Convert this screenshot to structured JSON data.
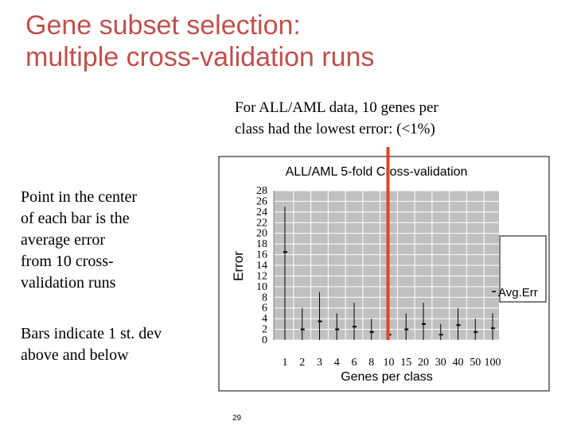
{
  "slide": {
    "title_lines": [
      "Gene subset selection:",
      "multiple cross-validation runs"
    ],
    "callout_lines": [
      "For ALL/AML data, 10 genes per",
      "class had the lowest error: (<1%)"
    ],
    "note1_lines": [
      "Point in the center",
      "of each bar is the",
      "average error",
      "from 10 cross-",
      "validation runs"
    ],
    "note2_lines": [
      "Bars indicate 1 st. dev",
      "above and below"
    ],
    "page_number": "29"
  },
  "colors": {
    "title": "#c0504d",
    "highlight_line": "#e0451f",
    "plot_background": "#c0c0c0",
    "grid": "#ffffff"
  },
  "chart_data": {
    "type": "scatter",
    "title": "ALL/AML 5-fold Cross-validation",
    "xlabel": "Genes per class",
    "ylabel": "Error",
    "categories": [
      "1",
      "2",
      "3",
      "4",
      "6",
      "8",
      "10",
      "15",
      "20",
      "30",
      "40",
      "50",
      "100"
    ],
    "series": [
      {
        "name": "Avg.Err",
        "values": [
          16.5,
          2,
          3.5,
          2,
          2.5,
          1.5,
          1,
          2,
          3,
          1,
          2.8,
          1.5,
          2.2
        ],
        "err_low": [
          0,
          0,
          0,
          0,
          0,
          0,
          0,
          0,
          0,
          0,
          0,
          0,
          0
        ],
        "err_high": [
          25,
          6,
          9,
          5,
          7,
          4,
          2,
          5,
          7,
          3,
          6,
          4,
          5
        ]
      }
    ],
    "ylim": [
      0,
      28
    ],
    "yticks": [
      0,
      2,
      4,
      6,
      8,
      10,
      12,
      14,
      16,
      18,
      20,
      22,
      24,
      26,
      28
    ],
    "grid": true,
    "legend": "right",
    "highlight_category": "10"
  }
}
